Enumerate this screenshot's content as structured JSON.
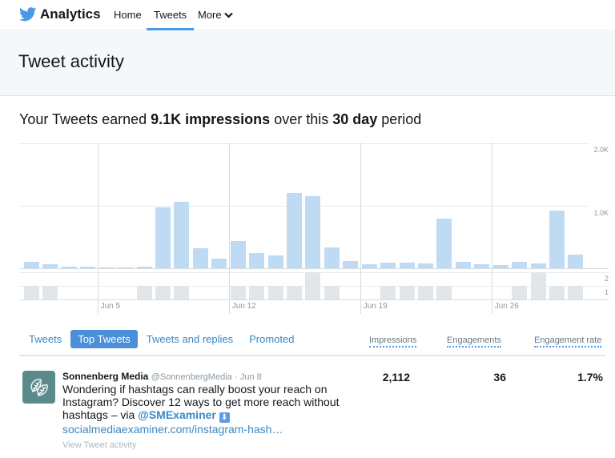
{
  "nav": {
    "brand": "Analytics",
    "links": [
      {
        "label": "Home",
        "active": false
      },
      {
        "label": "Tweets",
        "active": true
      },
      {
        "label": "More",
        "active": false,
        "icon": "chevron-down-icon"
      }
    ],
    "brand_icon": "twitter-bird-icon",
    "accent": "#4a99e9"
  },
  "page": {
    "title": "Tweet activity"
  },
  "summary": {
    "prefix": "Your Tweets earned ",
    "impressions": "9.1K impressions",
    "middle": " over this ",
    "period": "30 day",
    "suffix": " period"
  },
  "chart_data": {
    "type": "bar",
    "title": "Your Tweets earned 9.1K impressions over this 30 day period",
    "series": [
      {
        "name": "Impressions",
        "color": "#bfdaf3",
        "values": [
          100,
          65,
          25,
          25,
          10,
          10,
          25,
          975,
          1060,
          320,
          155,
          435,
          245,
          205,
          1205,
          1150,
          335,
          115,
          65,
          90,
          90,
          80,
          795,
          100,
          65,
          55,
          100,
          80,
          925,
          220
        ],
        "y_ticks": [
          "1.0K",
          "2.0K"
        ],
        "ylim": [
          0,
          2000
        ]
      },
      {
        "name": "Engagements",
        "color": "#e1e6ea",
        "values": [
          1,
          1,
          0,
          0,
          0,
          0,
          1,
          1,
          1,
          0,
          0,
          1,
          1,
          1,
          1,
          2,
          1,
          0,
          0,
          1,
          1,
          1,
          1,
          0,
          0,
          0,
          1,
          2,
          1,
          1
        ],
        "y_ticks": [
          "1",
          "2"
        ],
        "ylim": [
          0,
          2
        ]
      }
    ],
    "x_tick_labels": [
      {
        "label": "Jun 5",
        "index": 4
      },
      {
        "label": "Jun 12",
        "index": 11
      },
      {
        "label": "Jun 19",
        "index": 18
      },
      {
        "label": "Jun 26",
        "index": 25
      }
    ],
    "grid": true
  },
  "tabs": [
    {
      "label": "Tweets",
      "active": false
    },
    {
      "label": "Top Tweets",
      "active": true
    },
    {
      "label": "Tweets and replies",
      "active": false
    },
    {
      "label": "Promoted",
      "active": false
    }
  ],
  "columns": [
    "Impressions",
    "Engagements",
    "Engagement rate"
  ],
  "tweets": [
    {
      "name": "Sonnenberg Media",
      "handle": "@SonnenbergMedia",
      "date": "· Jun 8",
      "text_1": "Wondering if hashtags can really boost your reach on Instagram? Discover 12 ways to get more reach without hashtags – via ",
      "mention": "@SMExaminer",
      "emoji": "⬇",
      "link": "socialmediaexaminer.com/instagram-hash…",
      "activity_link": "View Tweet activity",
      "avatar_color": "#5b8a8a",
      "impressions": "2,112",
      "engagements": "36",
      "engagement_rate": "1.7%"
    }
  ]
}
